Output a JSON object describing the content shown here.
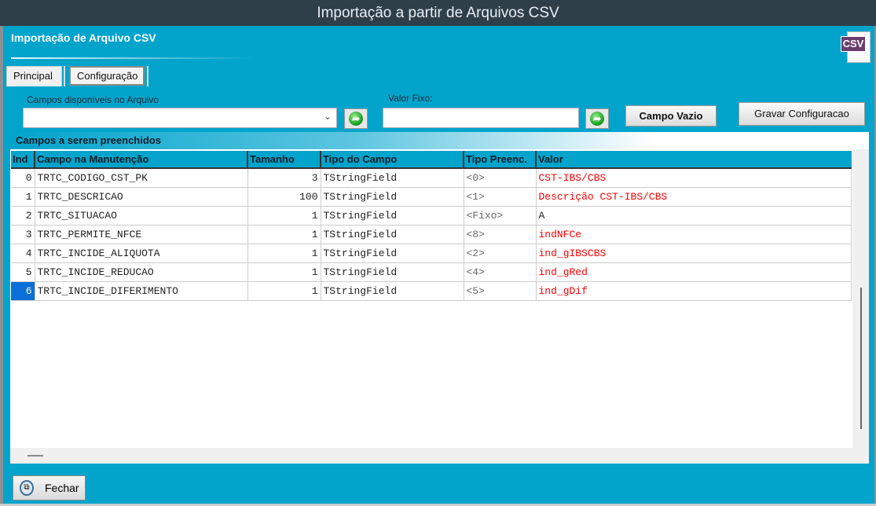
{
  "window": {
    "title": "Importação a partir de Arquivos CSV"
  },
  "header": {
    "subtitle": "Importação de Arquivo CSV",
    "icon_text": "CSV"
  },
  "tabs": [
    {
      "label": "Principal"
    },
    {
      "label": "Configuração"
    }
  ],
  "form": {
    "campos_label": "Campos disponíveis no Arquivo",
    "campos_value": "",
    "valor_fixo_label": "Valor Fixo:",
    "valor_fixo_value": "",
    "campo_vazio": "Campo Vazio",
    "gravar": "Gravar Configuracao"
  },
  "grid": {
    "title": "Campos a serem preenchidos",
    "columns": [
      "Ind",
      "Campo na Manutenção",
      "Tamanho",
      "Tipo do Campo",
      "Tipo Preenc.",
      "Valor"
    ],
    "rows": [
      {
        "ind": "0",
        "campo": "TRTC_CODIGO_CST_PK",
        "tamanho": "3",
        "tipo": "TStringField",
        "preenc": "<0>",
        "valor": "CST-IBS/CBS"
      },
      {
        "ind": "1",
        "campo": "TRTC_DESCRICAO",
        "tamanho": "100",
        "tipo": "TStringField",
        "preenc": "<1>",
        "valor": "Descrição CST-IBS/CBS"
      },
      {
        "ind": "2",
        "campo": "TRTC_SITUACAO",
        "tamanho": "1",
        "tipo": "TStringField",
        "preenc": "<Fixo>",
        "valor": "A"
      },
      {
        "ind": "3",
        "campo": "TRTC_PERMITE_NFCE",
        "tamanho": "1",
        "tipo": "TStringField",
        "preenc": "<8>",
        "valor": "indNFCe"
      },
      {
        "ind": "4",
        "campo": "TRTC_INCIDE_ALIQUOTA",
        "tamanho": "1",
        "tipo": "TStringField",
        "preenc": "<2>",
        "valor": "ind_gIBSCBS"
      },
      {
        "ind": "5",
        "campo": "TRTC_INCIDE_REDUCAO",
        "tamanho": "1",
        "tipo": "TStringField",
        "preenc": "<4>",
        "valor": "ind_gRed"
      },
      {
        "ind": "6",
        "campo": "TRTC_INCIDE_DIFERIMENTO",
        "tamanho": "1",
        "tipo": "TStringField",
        "preenc": "<5>",
        "valor": "ind_gDif"
      }
    ],
    "selected_index": 6
  },
  "footer": {
    "fechar": "Fechar"
  },
  "colors": {
    "background": "#02a4cc",
    "titlebar": "#2f3f4a",
    "value_mapped": "#ff0000",
    "selection": "#0a6fd6"
  }
}
